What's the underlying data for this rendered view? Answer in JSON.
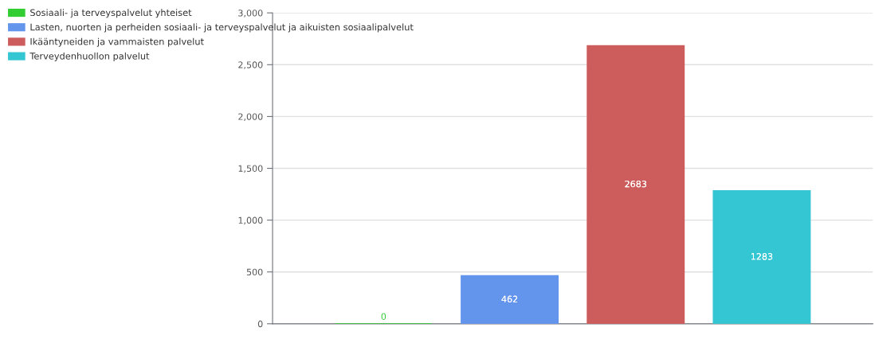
{
  "chart_data": {
    "type": "bar",
    "categories": [
      null
    ],
    "series": [
      {
        "name": "Sosiaali- ja terveyspalvelut yhteiset",
        "color": "#32cd32",
        "values": [
          0
        ]
      },
      {
        "name": "Lasten, nuorten ja perheiden sosiaali- ja terveyspalvelut ja aikuisten sosiaalipalvelut",
        "color": "#6495ed",
        "values": [
          462
        ]
      },
      {
        "name": "Ikääntyneiden ja vammaisten palvelut",
        "color": "#cd5c5c",
        "values": [
          2683
        ]
      },
      {
        "name": "Terveydenhuollon palvelut",
        "color": "#34c6d3",
        "values": [
          1283
        ]
      }
    ],
    "ylim": [
      0,
      3000
    ],
    "yticks": [
      0,
      500,
      {
        "value": 1000,
        "label": "1,000"
      },
      {
        "value": 1500,
        "label": "1,500"
      },
      {
        "value": 2000,
        "label": "2,000"
      },
      {
        "value": 2500,
        "label": "2,500"
      },
      {
        "value": 3000,
        "label": "3,000"
      }
    ],
    "grid": "y",
    "legend": "top left",
    "data_labels": true
  }
}
